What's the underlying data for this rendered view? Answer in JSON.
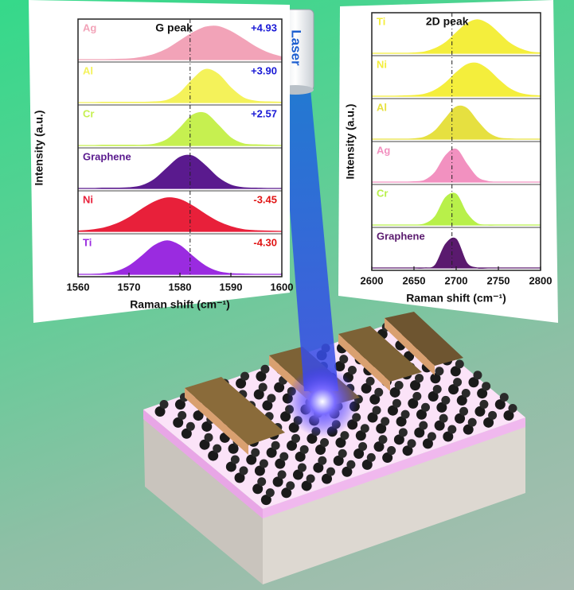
{
  "chart_data": [
    {
      "type": "area",
      "annotation": "G peak",
      "x_label": "Raman shift (cm⁻¹)",
      "y_label": "Intensity (a.u.)",
      "xlim": [
        1560,
        1600
      ],
      "xticks": [
        1560,
        1570,
        1580,
        1590,
        1600
      ],
      "ylim": [
        0,
        100
      ],
      "reference_x": 1582,
      "x": [
        1560,
        1562.5,
        1565,
        1567.5,
        1570,
        1572.5,
        1575,
        1577.5,
        1580,
        1582.5,
        1585,
        1587.5,
        1590,
        1592.5,
        1595,
        1597.5,
        1600
      ],
      "series": [
        {
          "name": "Ag",
          "color": "#f2a3b8",
          "values": [
            0,
            0,
            0,
            1,
            2,
            7,
            16,
            32,
            56,
            80,
            97,
            99,
            84,
            61,
            37,
            19,
            8
          ]
        },
        {
          "name": "Al",
          "color": "#f4f25a",
          "values": [
            0,
            0,
            1,
            1,
            1,
            1,
            2,
            7,
            29,
            69,
            99,
            85,
            44,
            14,
            4,
            2,
            1
          ]
        },
        {
          "name": "Cr",
          "color": "#c6f050",
          "values": [
            0,
            0,
            1,
            1,
            1,
            1,
            4,
            18,
            52,
            91,
            96,
            61,
            23,
            5,
            2,
            1,
            0
          ]
        },
        {
          "name": "Graphene",
          "color": "#5a1a8e",
          "values": [
            0,
            0,
            1,
            1,
            2,
            8,
            27,
            61,
            93,
            97,
            68,
            32,
            10,
            2,
            1,
            0,
            0
          ]
        },
        {
          "name": "Ni",
          "color": "#e8203a",
          "values": [
            1,
            4,
            10,
            22,
            41,
            66,
            88,
            100,
            95,
            76,
            51,
            29,
            14,
            5,
            2,
            1,
            0
          ]
        },
        {
          "name": "Ti",
          "color": "#9a2be0",
          "values": [
            0,
            0,
            2,
            8,
            25,
            54,
            86,
            100,
            86,
            54,
            25,
            8,
            2,
            1,
            0,
            0,
            0
          ]
        }
      ],
      "shifts": [
        4.93,
        3.9,
        2.57,
        null,
        -3.45,
        -4.3
      ],
      "shift_labels": [
        "+4.93",
        "+3.90",
        "+2.57",
        null,
        "-3.45",
        "-4.30"
      ]
    },
    {
      "type": "area",
      "annotation": "2D peak",
      "x_label": "Raman shift (cm⁻¹)",
      "y_label": "Intensity (a.u.)",
      "xlim": [
        2600,
        2800
      ],
      "xticks": [
        2600,
        2650,
        2700,
        2750,
        2800
      ],
      "ylim": [
        0,
        100
      ],
      "reference_x": 2695,
      "x": [
        2600,
        2612.5,
        2625,
        2637.5,
        2650,
        2662.5,
        2675,
        2687.5,
        2700,
        2712.5,
        2725,
        2737.5,
        2750,
        2762.5,
        2775,
        2787.5,
        2800
      ],
      "series": [
        {
          "name": "Ti",
          "color": "#f4ee3c",
          "values": [
            0,
            0,
            0,
            0,
            1,
            4,
            14,
            32,
            61,
            88,
            100,
            88,
            61,
            32,
            14,
            4,
            1
          ]
        },
        {
          "name": "Ni",
          "color": "#f4ee3c",
          "values": [
            0,
            0,
            0,
            1,
            2,
            6,
            18,
            40,
            70,
            94,
            98,
            80,
            50,
            24,
            9,
            3,
            1
          ]
        },
        {
          "name": "Al",
          "color": "#e6e040",
          "values": [
            0,
            0,
            0,
            0,
            1,
            6,
            25,
            62,
            96,
            92,
            54,
            20,
            4,
            1,
            0,
            0,
            0
          ]
        },
        {
          "name": "Ag",
          "color": "#f291c0",
          "values": [
            0,
            0,
            0,
            0,
            1,
            5,
            29,
            79,
            98,
            54,
            14,
            2,
            0,
            0,
            0,
            0,
            0
          ]
        },
        {
          "name": "Cr",
          "color": "#b8f04a",
          "values": [
            0,
            0,
            0,
            0,
            0,
            3,
            25,
            82,
            92,
            35,
            4,
            0,
            0,
            0,
            0,
            0,
            0
          ]
        },
        {
          "name": "Graphene",
          "color": "#5a1a6e",
          "values": [
            0,
            0,
            0,
            0,
            0,
            0,
            8,
            71,
            86,
            15,
            0,
            0,
            0,
            0,
            0,
            0,
            0
          ]
        }
      ]
    }
  ],
  "illustration": {
    "laser_label": "Laser"
  }
}
